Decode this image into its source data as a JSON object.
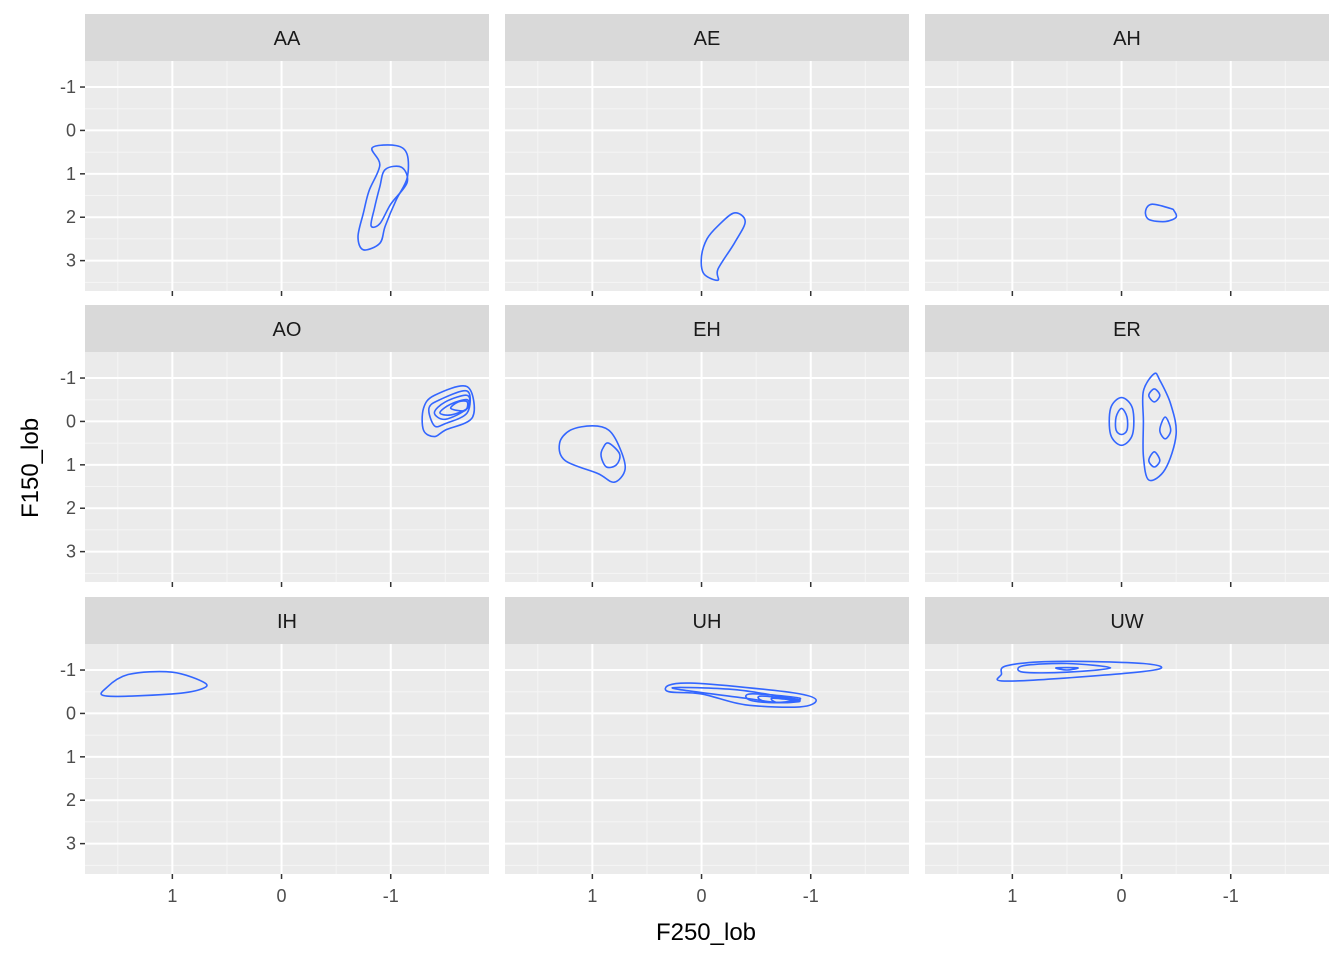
{
  "chart_data": {
    "type": "contour",
    "title": "",
    "xlabel": "F250_lob",
    "ylabel": "F150_lob",
    "x_reversed": true,
    "y_reversed": true,
    "xlim": [
      1.8,
      -1.9
    ],
    "ylim": [
      -1.6,
      3.7
    ],
    "x_breaks": [
      1,
      0,
      -1
    ],
    "x_tick_labels": [
      "1",
      "0",
      "-1"
    ],
    "y_breaks": [
      -1,
      0,
      1,
      2,
      3
    ],
    "y_tick_labels": [
      "-1",
      "0",
      "1",
      "2",
      "3"
    ],
    "grid": true,
    "legend": "none",
    "colors": {
      "contour": "#3366FF",
      "panel_bg": "#EBEBEB",
      "strip_bg": "#D9D9D9",
      "grid_major": "#FFFFFF",
      "text": "#4D4D4D"
    },
    "facets": [
      {
        "label": "AA",
        "contours": [
          {
            "points": [
              [
                -0.83,
                0.4
              ],
              [
                -1.05,
                0.35
              ],
              [
                -1.15,
                0.55
              ],
              [
                -1.15,
                1.1
              ],
              [
                -1.05,
                1.6
              ],
              [
                -0.95,
                2.2
              ],
              [
                -0.9,
                2.6
              ],
              [
                -0.75,
                2.75
              ],
              [
                -0.7,
                2.45
              ],
              [
                -0.75,
                1.9
              ],
              [
                -0.8,
                1.4
              ],
              [
                -0.9,
                0.8
              ]
            ]
          },
          {
            "points": [
              [
                -0.95,
                0.9
              ],
              [
                -1.1,
                0.85
              ],
              [
                -1.15,
                1.2
              ],
              [
                -1.0,
                1.7
              ],
              [
                -0.9,
                2.15
              ],
              [
                -0.82,
                2.2
              ],
              [
                -0.85,
                1.8
              ],
              [
                -0.9,
                1.3
              ]
            ]
          }
        ]
      },
      {
        "label": "AE",
        "contours": [
          {
            "points": [
              [
                -0.15,
                2.2
              ],
              [
                -0.3,
                1.9
              ],
              [
                -0.4,
                2.1
              ],
              [
                -0.3,
                2.6
              ],
              [
                -0.15,
                3.2
              ],
              [
                -0.15,
                3.45
              ],
              [
                -0.02,
                3.3
              ],
              [
                0.0,
                2.9
              ],
              [
                -0.05,
                2.5
              ]
            ]
          }
        ]
      },
      {
        "label": "AH",
        "contours": [
          {
            "points": [
              [
                -0.45,
                1.8
              ],
              [
                -0.28,
                1.7
              ],
              [
                -0.22,
                1.85
              ],
              [
                -0.25,
                2.05
              ],
              [
                -0.4,
                2.1
              ],
              [
                -0.5,
                2.0
              ],
              [
                -0.48,
                1.85
              ]
            ]
          }
        ]
      },
      {
        "label": "AO",
        "contours": [
          {
            "points": [
              [
                -1.3,
                -0.3
              ],
              [
                -1.4,
                -0.6
              ],
              [
                -1.7,
                -0.8
              ],
              [
                -1.75,
                -0.1
              ],
              [
                -1.5,
                0.2
              ],
              [
                -1.4,
                0.35
              ],
              [
                -1.3,
                0.2
              ]
            ]
          },
          {
            "points": [
              [
                -1.35,
                -0.3
              ],
              [
                -1.45,
                -0.5
              ],
              [
                -1.7,
                -0.7
              ],
              [
                -1.7,
                -0.2
              ],
              [
                -1.5,
                0.05
              ],
              [
                -1.4,
                0.1
              ]
            ]
          },
          {
            "points": [
              [
                -1.4,
                -0.2
              ],
              [
                -1.5,
                -0.45
              ],
              [
                -1.7,
                -0.6
              ],
              [
                -1.7,
                -0.3
              ],
              [
                -1.5,
                -0.05
              ]
            ]
          },
          {
            "points": [
              [
                -1.45,
                -0.2
              ],
              [
                -1.55,
                -0.4
              ],
              [
                -1.7,
                -0.5
              ],
              [
                -1.7,
                -0.3
              ],
              [
                -1.55,
                -0.15
              ]
            ]
          },
          {
            "points": [
              [
                -1.55,
                -0.3
              ],
              [
                -1.62,
                -0.45
              ],
              [
                -1.7,
                -0.45
              ],
              [
                -1.68,
                -0.25
              ]
            ]
          }
        ]
      },
      {
        "label": "EH",
        "contours": [
          {
            "points": [
              [
                1.0,
                0.1
              ],
              [
                0.85,
                0.2
              ],
              [
                0.75,
                0.6
              ],
              [
                0.7,
                1.1
              ],
              [
                0.8,
                1.4
              ],
              [
                0.95,
                1.2
              ],
              [
                1.25,
                0.9
              ],
              [
                1.3,
                0.5
              ],
              [
                1.2,
                0.2
              ]
            ]
          },
          {
            "points": [
              [
                0.85,
                0.5
              ],
              [
                0.75,
                0.75
              ],
              [
                0.78,
                1.0
              ],
              [
                0.87,
                1.05
              ],
              [
                0.92,
                0.8
              ],
              [
                0.9,
                0.6
              ]
            ]
          }
        ]
      },
      {
        "label": "ER",
        "contours": [
          {
            "points": [
              [
                0.0,
                -0.55
              ],
              [
                -0.1,
                -0.3
              ],
              [
                -0.1,
                0.3
              ],
              [
                0.0,
                0.55
              ],
              [
                0.1,
                0.3
              ],
              [
                0.1,
                -0.3
              ]
            ]
          },
          {
            "points": [
              [
                0.0,
                -0.3
              ],
              [
                -0.05,
                -0.1
              ],
              [
                -0.05,
                0.2
              ],
              [
                0.0,
                0.3
              ],
              [
                0.05,
                0.2
              ],
              [
                0.05,
                -0.1
              ]
            ]
          },
          {
            "points": [
              [
                -0.3,
                -1.1
              ],
              [
                -0.2,
                -0.7
              ],
              [
                -0.2,
                0.0
              ],
              [
                -0.2,
                0.8
              ],
              [
                -0.25,
                1.35
              ],
              [
                -0.4,
                1.1
              ],
              [
                -0.5,
                0.3
              ],
              [
                -0.45,
                -0.4
              ],
              [
                -0.35,
                -0.95
              ]
            ]
          },
          {
            "points": [
              [
                -0.3,
                -0.75
              ],
              [
                -0.25,
                -0.6
              ],
              [
                -0.3,
                -0.45
              ],
              [
                -0.35,
                -0.6
              ]
            ]
          },
          {
            "points": [
              [
                -0.4,
                -0.1
              ],
              [
                -0.35,
                0.2
              ],
              [
                -0.4,
                0.4
              ],
              [
                -0.45,
                0.2
              ]
            ]
          },
          {
            "points": [
              [
                -0.3,
                0.7
              ],
              [
                -0.25,
                0.9
              ],
              [
                -0.3,
                1.05
              ],
              [
                -0.35,
                0.9
              ]
            ]
          }
        ]
      },
      {
        "label": "IH",
        "contours": [
          {
            "points": [
              [
                1.6,
                -0.6
              ],
              [
                1.4,
                -0.9
              ],
              [
                1.0,
                -0.95
              ],
              [
                0.7,
                -0.7
              ],
              [
                0.75,
                -0.55
              ],
              [
                1.0,
                -0.45
              ],
              [
                1.6,
                -0.4
              ]
            ]
          }
        ]
      },
      {
        "label": "UH",
        "contours": [
          {
            "points": [
              [
                0.3,
                -0.65
              ],
              [
                0.1,
                -0.7
              ],
              [
                -0.4,
                -0.6
              ],
              [
                -0.9,
                -0.45
              ],
              [
                -1.05,
                -0.3
              ],
              [
                -0.9,
                -0.15
              ],
              [
                -0.4,
                -0.2
              ],
              [
                0.0,
                -0.45
              ],
              [
                0.3,
                -0.5
              ]
            ]
          },
          {
            "points": [
              [
                0.2,
                -0.6
              ],
              [
                -0.3,
                -0.55
              ],
              [
                -0.7,
                -0.4
              ],
              [
                -0.9,
                -0.3
              ],
              [
                -0.7,
                -0.25
              ],
              [
                -0.4,
                -0.35
              ],
              [
                0.2,
                -0.55
              ]
            ]
          },
          {
            "points": [
              [
                -0.45,
                -0.45
              ],
              [
                -0.9,
                -0.35
              ],
              [
                -0.7,
                -0.25
              ],
              [
                -0.45,
                -0.3
              ]
            ]
          },
          {
            "points": [
              [
                -0.55,
                -0.4
              ],
              [
                -0.9,
                -0.3
              ],
              [
                -0.7,
                -0.25
              ],
              [
                -0.55,
                -0.3
              ]
            ]
          },
          {
            "points": [
              [
                -0.65,
                -0.35
              ],
              [
                -0.9,
                -0.28
              ],
              [
                -0.7,
                -0.25
              ]
            ]
          }
        ]
      },
      {
        "label": "UW",
        "contours": [
          {
            "points": [
              [
                1.05,
                -1.1
              ],
              [
                0.6,
                -1.2
              ],
              [
                -0.2,
                -1.15
              ],
              [
                -0.3,
                -1.0
              ],
              [
                0.6,
                -0.8
              ],
              [
                1.1,
                -0.75
              ],
              [
                1.1,
                -0.9
              ]
            ]
          },
          {
            "points": [
              [
                0.9,
                -1.1
              ],
              [
                0.5,
                -1.15
              ],
              [
                0.1,
                -1.05
              ],
              [
                0.5,
                -0.95
              ],
              [
                0.9,
                -0.95
              ]
            ]
          },
          {
            "points": [
              [
                0.6,
                -1.05
              ],
              [
                0.4,
                -1.05
              ],
              [
                0.5,
                -1.0
              ]
            ]
          }
        ]
      }
    ]
  }
}
